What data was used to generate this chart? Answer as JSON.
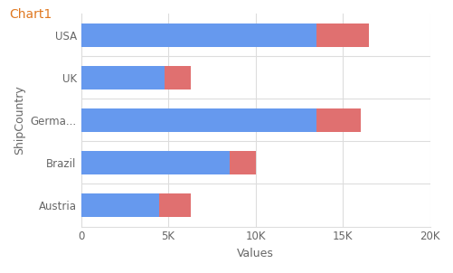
{
  "title": "Chart1",
  "categories": [
    "USA",
    "UK",
    "Germa...",
    "Brazil",
    "Austria"
  ],
  "blue_values": [
    13500,
    4800,
    13500,
    8500,
    4500
  ],
  "red_values": [
    3000,
    1500,
    2500,
    1500,
    1800
  ],
  "blue_color": "#6699EE",
  "red_color": "#E07070",
  "xlabel": "Values",
  "ylabel": "ShipCountry",
  "xlim": [
    0,
    20000
  ],
  "xticks": [
    0,
    5000,
    10000,
    15000,
    20000
  ],
  "xtick_labels": [
    "0",
    "5K",
    "10K",
    "15K",
    "20K"
  ],
  "title_color": "#E07820",
  "axis_label_color": "#666666",
  "tick_label_color": "#666666",
  "grid_color": "#DDDDDD",
  "background_color": "#FFFFFF",
  "bar_height": 0.55
}
